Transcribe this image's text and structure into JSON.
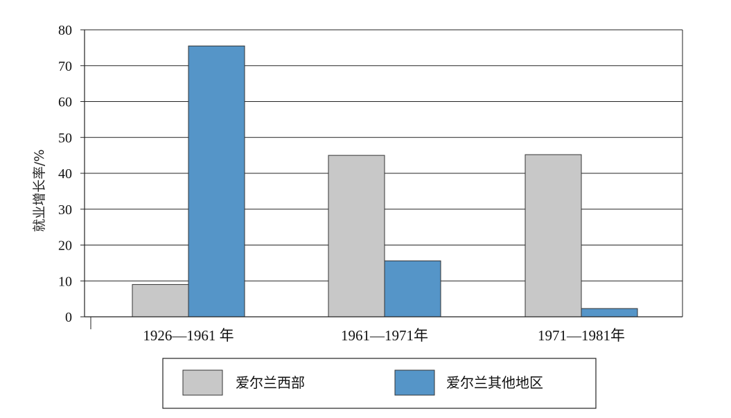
{
  "chart_data": {
    "type": "bar",
    "categories": [
      "1926—1961 年",
      "1961—1971年",
      "1971—1981年"
    ],
    "series": [
      {
        "name": "爱尔兰西部",
        "values": [
          9,
          45,
          45.2
        ],
        "color": "#c8c8c8"
      },
      {
        "name": "爱尔兰其他地区",
        "values": [
          75.5,
          15.6,
          2.3
        ],
        "color": "#5595c8"
      }
    ],
    "ylabel": "就业增长率/%",
    "xlabel": "",
    "ylim": [
      0,
      80
    ],
    "yticks": [
      "0",
      "10",
      "20",
      "30",
      "40",
      "50",
      "60",
      "70",
      "80"
    ],
    "grid": true,
    "legend_position": "bottom"
  }
}
